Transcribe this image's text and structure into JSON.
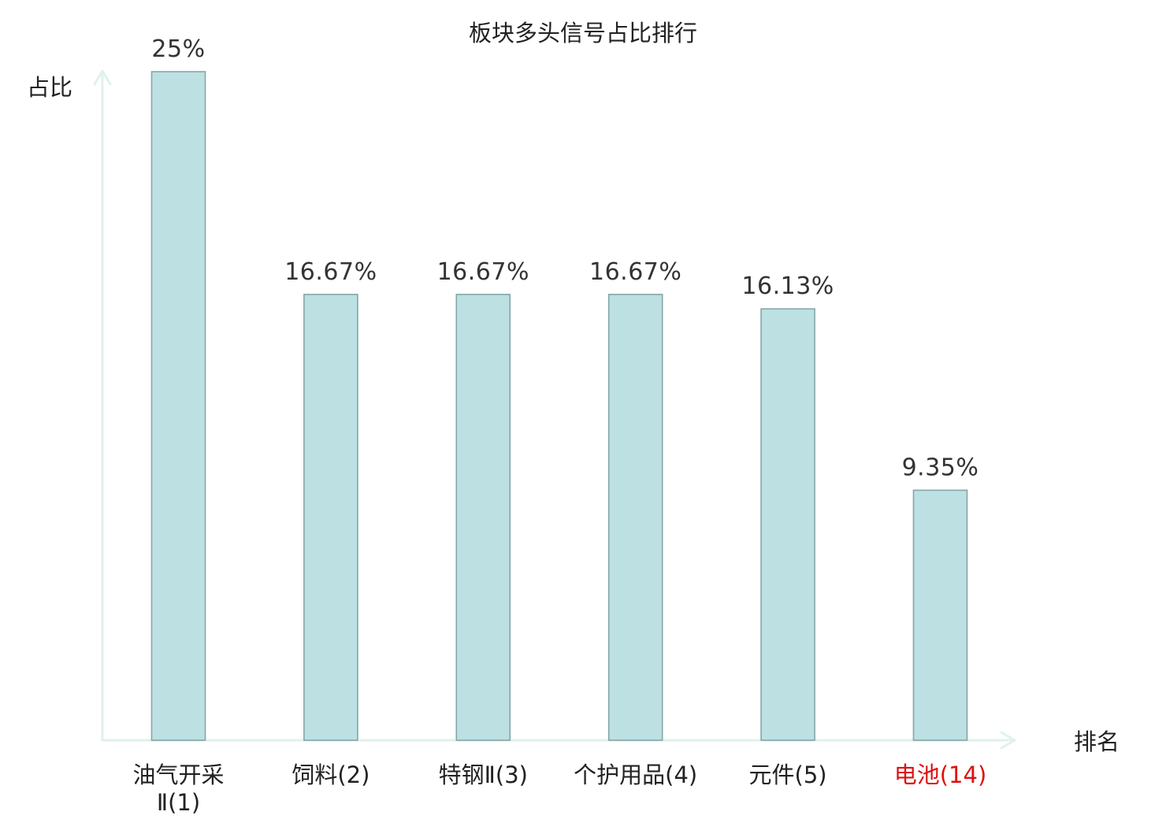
{
  "chart_data": {
    "type": "bar",
    "title": "板块多头信号占比排行",
    "ylabel": "占比",
    "xlabel": "排名",
    "ylim": [
      0,
      25
    ],
    "grid": false,
    "legend": "none",
    "categories": [
      {
        "name": "油气开采Ⅱ",
        "rank": "(1)",
        "lines": [
          "油气开采",
          "Ⅱ(1)"
        ],
        "highlight": false
      },
      {
        "name": "饲料",
        "rank": "(2)",
        "lines": [
          "饲料(2)"
        ],
        "highlight": false
      },
      {
        "name": "特钢Ⅱ",
        "rank": "(3)",
        "lines": [
          "特钢Ⅱ(3)"
        ],
        "highlight": false
      },
      {
        "name": "个护用品",
        "rank": "(4)",
        "lines": [
          "个护用品(4)"
        ],
        "highlight": false
      },
      {
        "name": "元件",
        "rank": "(5)",
        "lines": [
          "元件(5)"
        ],
        "highlight": false
      },
      {
        "name": "电池",
        "rank": "(14)",
        "lines": [
          "电池(14)"
        ],
        "highlight": true
      }
    ],
    "values": [
      25,
      16.67,
      16.67,
      16.67,
      16.13,
      9.35
    ],
    "value_labels": [
      "25%",
      "16.67%",
      "16.67%",
      "16.67%",
      "16.13%",
      "9.35%"
    ],
    "colors": {
      "bar_fill": "#bde0e3",
      "bar_stroke": "#84a6a9",
      "axis": "#e0f1ee",
      "highlight_label": "#dd1111"
    }
  }
}
